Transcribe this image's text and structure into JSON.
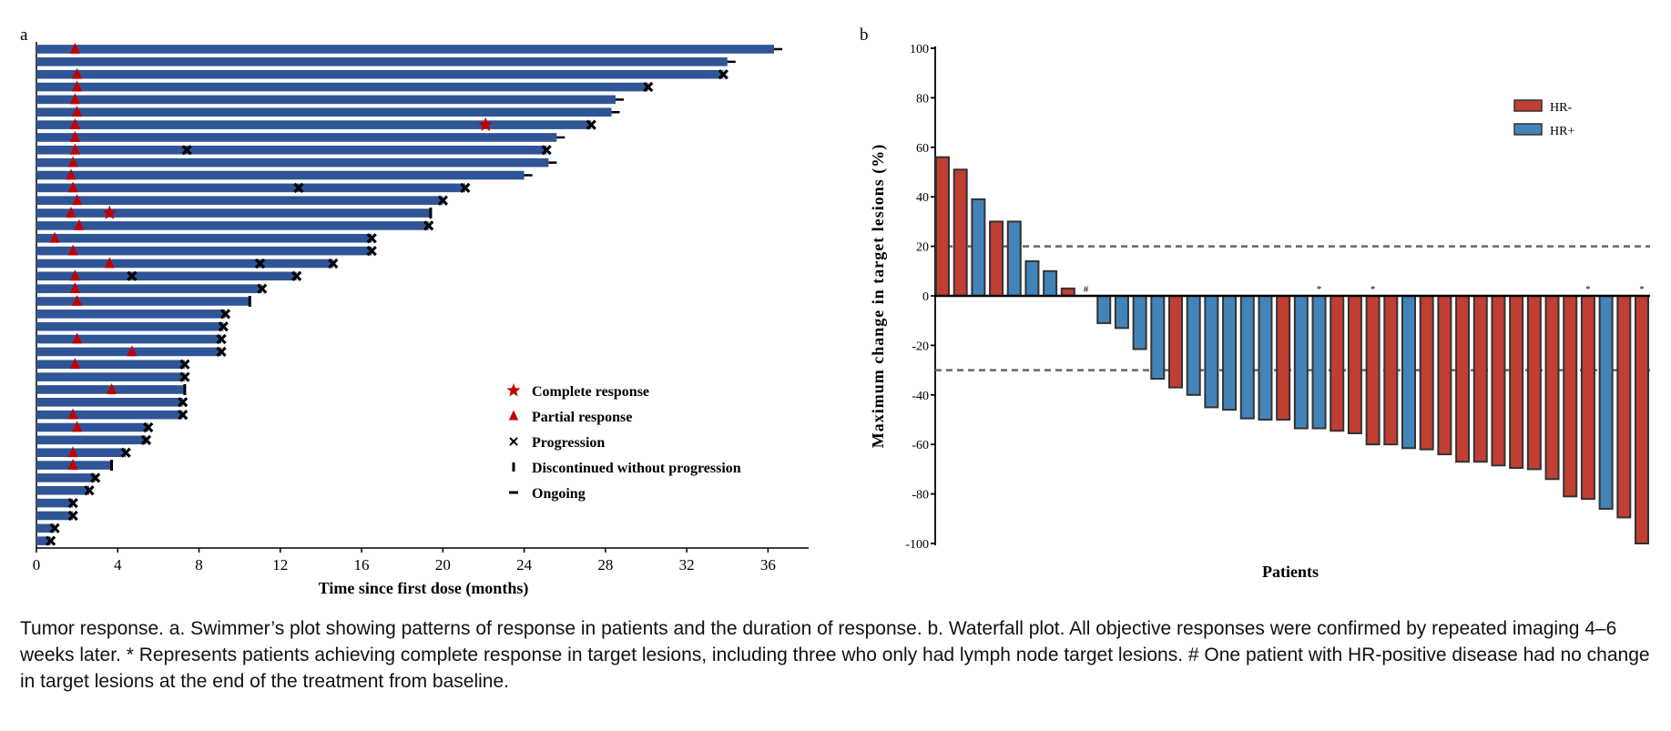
{
  "panel_labels": {
    "a": "a",
    "b": "b"
  },
  "caption": "Tumor response. a. Swimmer’s plot showing patterns of response in patients and the duration of response. b. Waterfall plot. All objective responses were confirmed by repeated imaging 4–6 weeks later. * Represents patients achieving complete response in target lesions, including three who only had lymph node target lesions. # One patient with HR-positive disease had no change in target lesions at the end of the treatment from baseline.",
  "chart_data": [
    {
      "type": "swimmer",
      "xlabel": "Time since first dose (months)",
      "xlim": [
        0,
        38
      ],
      "xticks": [
        0,
        4,
        8,
        12,
        16,
        20,
        24,
        28,
        32,
        36
      ],
      "colors": {
        "bar": "#2f5597",
        "response": "#c00000",
        "marker": "#000000"
      },
      "legend": {
        "position": "bottom-right",
        "entries": [
          {
            "symbol": "star",
            "label": "Complete response"
          },
          {
            "symbol": "triangle",
            "label": "Partial response"
          },
          {
            "symbol": "cross",
            "label": "Progression"
          },
          {
            "symbol": "vbar",
            "label": "Discontinued without progression"
          },
          {
            "symbol": "dash",
            "label": "Ongoing"
          }
        ]
      },
      "patients": [
        {
          "duration": 36.3,
          "end": "ongoing",
          "pr": [
            1.9
          ],
          "cr": [],
          "progression": []
        },
        {
          "duration": 34.0,
          "end": "ongoing",
          "pr": [],
          "cr": [],
          "progression": []
        },
        {
          "duration": 33.8,
          "end": "progression",
          "pr": [
            2.0
          ],
          "cr": [],
          "progression": [
            33.8
          ]
        },
        {
          "duration": 30.1,
          "end": "progression",
          "pr": [
            2.0
          ],
          "cr": [],
          "progression": [
            30.1
          ]
        },
        {
          "duration": 28.5,
          "end": "ongoing",
          "pr": [
            1.9
          ],
          "cr": [],
          "progression": []
        },
        {
          "duration": 28.3,
          "end": "ongoing",
          "pr": [
            2.0
          ],
          "cr": [],
          "progression": []
        },
        {
          "duration": 27.3,
          "end": "progression",
          "pr": [
            1.9
          ],
          "cr": [
            22.1
          ],
          "progression": [
            27.3
          ]
        },
        {
          "duration": 25.6,
          "end": "ongoing",
          "pr": [
            1.9
          ],
          "cr": [],
          "progression": []
        },
        {
          "duration": 25.1,
          "end": "progression",
          "pr": [
            1.9
          ],
          "cr": [],
          "progression": [
            7.4,
            25.1
          ]
        },
        {
          "duration": 25.2,
          "end": "ongoing",
          "pr": [
            1.8
          ],
          "cr": [],
          "progression": []
        },
        {
          "duration": 24.0,
          "end": "ongoing",
          "pr": [
            1.7
          ],
          "cr": [],
          "progression": []
        },
        {
          "duration": 21.1,
          "end": "progression",
          "pr": [
            1.8
          ],
          "cr": [],
          "progression": [
            12.9,
            21.1
          ]
        },
        {
          "duration": 20.0,
          "end": "progression",
          "pr": [
            2.0
          ],
          "cr": [],
          "progression": [
            20.0
          ]
        },
        {
          "duration": 19.4,
          "end": "discontinued",
          "pr": [
            1.7
          ],
          "cr": [
            3.6
          ],
          "progression": []
        },
        {
          "duration": 19.3,
          "end": "progression",
          "pr": [
            2.1
          ],
          "cr": [],
          "progression": [
            19.3
          ]
        },
        {
          "duration": 16.5,
          "end": "progression",
          "pr": [
            0.9
          ],
          "cr": [],
          "progression": [
            16.5
          ]
        },
        {
          "duration": 16.5,
          "end": "progression",
          "pr": [
            1.8
          ],
          "cr": [],
          "progression": [
            16.5
          ]
        },
        {
          "duration": 14.6,
          "end": "progression",
          "pr": [
            3.6
          ],
          "cr": [],
          "progression": [
            11.0,
            14.6
          ]
        },
        {
          "duration": 12.8,
          "end": "progression",
          "pr": [
            1.9
          ],
          "cr": [],
          "progression": [
            4.7,
            12.8
          ]
        },
        {
          "duration": 11.1,
          "end": "progression",
          "pr": [
            1.9
          ],
          "cr": [],
          "progression": [
            11.1
          ]
        },
        {
          "duration": 10.5,
          "end": "discontinued",
          "pr": [
            2.0
          ],
          "cr": [],
          "progression": []
        },
        {
          "duration": 9.3,
          "end": "progression",
          "pr": [],
          "cr": [],
          "progression": [
            9.3
          ]
        },
        {
          "duration": 9.2,
          "end": "progression",
          "pr": [],
          "cr": [],
          "progression": [
            9.2
          ]
        },
        {
          "duration": 9.1,
          "end": "progression",
          "pr": [
            2.0
          ],
          "cr": [],
          "progression": [
            9.1
          ]
        },
        {
          "duration": 9.1,
          "end": "progression",
          "pr": [
            4.7
          ],
          "cr": [],
          "progression": [
            9.1
          ]
        },
        {
          "duration": 7.3,
          "end": "progression",
          "pr": [
            1.9
          ],
          "cr": [],
          "progression": [
            7.3
          ]
        },
        {
          "duration": 7.3,
          "end": "progression",
          "pr": [],
          "cr": [],
          "progression": [
            7.3
          ]
        },
        {
          "duration": 7.3,
          "end": "discontinued",
          "pr": [
            3.7
          ],
          "cr": [],
          "progression": []
        },
        {
          "duration": 7.2,
          "end": "progression",
          "pr": [],
          "cr": [],
          "progression": [
            7.2
          ]
        },
        {
          "duration": 7.2,
          "end": "progression",
          "pr": [
            1.8
          ],
          "cr": [],
          "progression": [
            7.2
          ]
        },
        {
          "duration": 5.5,
          "end": "progression",
          "pr": [
            2.0
          ],
          "cr": [],
          "progression": [
            5.5
          ]
        },
        {
          "duration": 5.4,
          "end": "progression",
          "pr": [],
          "cr": [],
          "progression": [
            5.4
          ]
        },
        {
          "duration": 4.4,
          "end": "progression",
          "pr": [
            1.8
          ],
          "cr": [],
          "progression": [
            4.4
          ]
        },
        {
          "duration": 3.7,
          "end": "discontinued",
          "pr": [
            1.8
          ],
          "cr": [],
          "progression": []
        },
        {
          "duration": 2.9,
          "end": "progression",
          "pr": [],
          "cr": [],
          "progression": [
            2.9
          ]
        },
        {
          "duration": 2.6,
          "end": "progression",
          "pr": [],
          "cr": [],
          "progression": [
            2.6
          ]
        },
        {
          "duration": 1.8,
          "end": "progression",
          "pr": [],
          "cr": [],
          "progression": [
            1.8
          ]
        },
        {
          "duration": 1.8,
          "end": "progression",
          "pr": [],
          "cr": [],
          "progression": [
            1.8
          ]
        },
        {
          "duration": 0.9,
          "end": "progression",
          "pr": [],
          "cr": [],
          "progression": [
            0.9
          ]
        },
        {
          "duration": 0.7,
          "end": "progression",
          "pr": [],
          "cr": [],
          "progression": [
            0.7
          ]
        }
      ]
    },
    {
      "type": "bar",
      "subtype": "waterfall",
      "xlabel": "Patients",
      "ylabel": "Maximum change in target lesions (%)",
      "ylim": [
        -100,
        100
      ],
      "yticks": [
        100,
        80,
        60,
        40,
        20,
        0,
        -20,
        -40,
        -60,
        -80,
        -100
      ],
      "reference_lines": [
        20,
        -30
      ],
      "colors": {
        "HR-": "#c13e33",
        "HR+": "#4284b9"
      },
      "legend": {
        "position": "top-right",
        "entries": [
          "HR-",
          "HR+"
        ]
      },
      "bars": [
        {
          "value": 56,
          "group": "HR-"
        },
        {
          "value": 51,
          "group": "HR-"
        },
        {
          "value": 39,
          "group": "HR+"
        },
        {
          "value": 30,
          "group": "HR-"
        },
        {
          "value": 30,
          "group": "HR+"
        },
        {
          "value": 14,
          "group": "HR+"
        },
        {
          "value": 10,
          "group": "HR+"
        },
        {
          "value": 3,
          "group": "HR-"
        },
        {
          "value": 0,
          "group": "HR+",
          "mark": "#"
        },
        {
          "value": -11,
          "group": "HR+"
        },
        {
          "value": -13,
          "group": "HR+"
        },
        {
          "value": -21.5,
          "group": "HR+"
        },
        {
          "value": -33.5,
          "group": "HR+"
        },
        {
          "value": -37,
          "group": "HR-"
        },
        {
          "value": -40,
          "group": "HR+"
        },
        {
          "value": -45,
          "group": "HR+"
        },
        {
          "value": -46,
          "group": "HR+"
        },
        {
          "value": -49.5,
          "group": "HR+"
        },
        {
          "value": -50,
          "group": "HR+"
        },
        {
          "value": -50,
          "group": "HR-"
        },
        {
          "value": -53.5,
          "group": "HR+"
        },
        {
          "value": -53.5,
          "group": "HR+",
          "mark": "*"
        },
        {
          "value": -54.5,
          "group": "HR-"
        },
        {
          "value": -55.5,
          "group": "HR-"
        },
        {
          "value": -60,
          "group": "HR-",
          "mark": "*"
        },
        {
          "value": -60,
          "group": "HR-"
        },
        {
          "value": -61.5,
          "group": "HR+"
        },
        {
          "value": -62,
          "group": "HR-"
        },
        {
          "value": -64,
          "group": "HR-"
        },
        {
          "value": -67,
          "group": "HR-"
        },
        {
          "value": -67,
          "group": "HR-"
        },
        {
          "value": -68.5,
          "group": "HR-"
        },
        {
          "value": -69.5,
          "group": "HR-"
        },
        {
          "value": -70,
          "group": "HR-"
        },
        {
          "value": -74,
          "group": "HR-"
        },
        {
          "value": -81,
          "group": "HR-"
        },
        {
          "value": -82,
          "group": "HR-",
          "mark": "*"
        },
        {
          "value": -86,
          "group": "HR+"
        },
        {
          "value": -89.5,
          "group": "HR-"
        },
        {
          "value": -100,
          "group": "HR-",
          "mark": "*"
        }
      ]
    }
  ]
}
